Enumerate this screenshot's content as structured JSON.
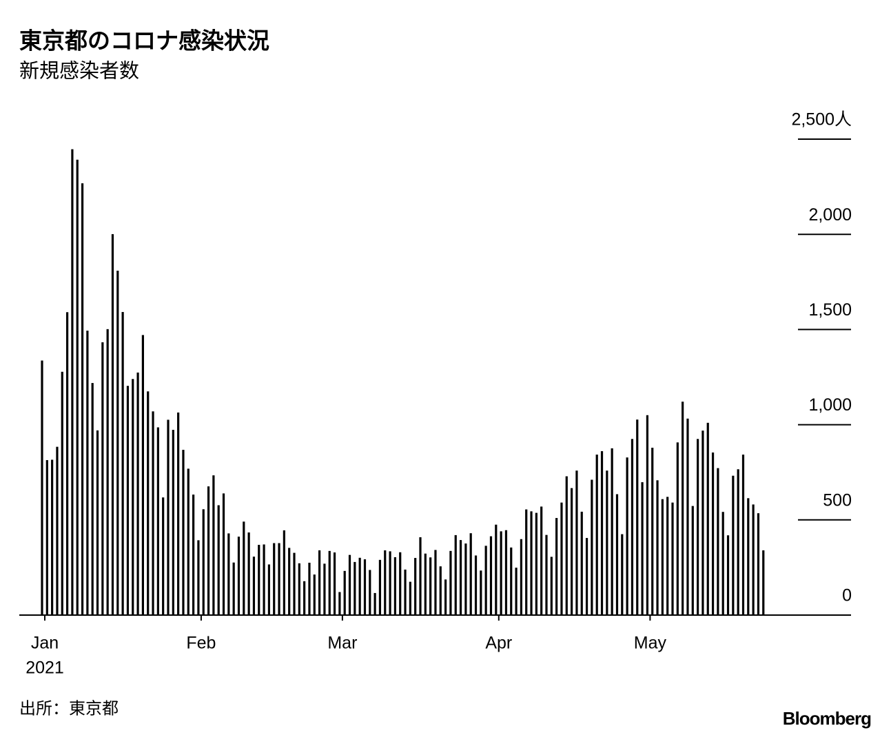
{
  "chart_data": {
    "type": "bar",
    "title": "東京都のコロナ感染状況",
    "subtitle": "新規感染者数",
    "source": "出所：東京都",
    "brand": "Bloomberg",
    "color": "#000000",
    "values": [
      1337,
      814,
      816,
      884,
      1278,
      1591,
      2447,
      2392,
      2268,
      1494,
      1219,
      970,
      1433,
      1502,
      2001,
      1809,
      1592,
      1204,
      1240,
      1274,
      1471,
      1175,
      1070,
      986,
      618,
      1026,
      973,
      1064,
      868,
      769,
      633,
      393,
      556,
      676,
      734,
      577,
      639,
      429,
      276,
      412,
      491,
      434,
      307,
      369,
      371,
      266,
      378,
      378,
      445,
      353,
      327,
      272,
      178,
      275,
      213,
      340,
      270,
      337,
      329,
      121,
      232,
      316,
      279,
      301,
      293,
      237,
      116,
      290,
      340,
      335,
      304,
      330,
      239,
      175,
      300,
      409,
      323,
      303,
      342,
      256,
      187,
      337,
      420,
      394,
      376,
      430,
      313,
      234,
      364,
      414,
      475,
      440,
      446,
      355,
      249,
      399,
      555,
      545,
      537,
      570,
      421,
      306,
      510,
      591,
      729,
      667,
      759,
      543,
      405,
      711,
      843,
      861,
      759,
      876,
      635,
      425,
      828,
      925,
      1027,
      698,
      1050,
      879,
      708,
      609,
      621,
      591,
      907,
      1121,
      1032,
      573,
      925,
      969,
      1010,
      854,
      772,
      542,
      419,
      732,
      766,
      843,
      614,
      581,
      535,
      340
    ],
    "xticks": [
      {
        "value": 0,
        "label": "Jan"
      },
      {
        "value": 31,
        "label": "Feb"
      },
      {
        "value": 59,
        "label": "Mar"
      },
      {
        "value": 90,
        "label": "Apr"
      },
      {
        "value": 120,
        "label": "May"
      }
    ],
    "xtick_year": "2021",
    "ylim": [
      0,
      2500
    ],
    "yticks": [
      0,
      500,
      {
        "value": 1000,
        "label": "1,000"
      },
      {
        "value": 1500,
        "label": "1,500"
      },
      {
        "value": 2000,
        "label": "2,000"
      },
      {
        "value": 2500,
        "label": "2,500人"
      }
    ]
  }
}
